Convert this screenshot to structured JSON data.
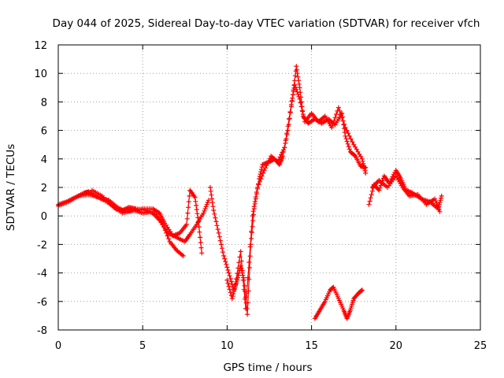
{
  "chart_data": {
    "type": "scatter",
    "title": "Day 044 of 2025, Sidereal Day-to-day VTEC variation (SDTVAR) for receiver vfch",
    "xlabel": "GPS time / hours",
    "ylabel": "SDTVAR / TECUs",
    "xlim": [
      0,
      25
    ],
    "ylim": [
      -8,
      12
    ],
    "x_ticks": [
      "0",
      "5",
      "10",
      "15",
      "20",
      "25"
    ],
    "y_ticks": [
      "-8",
      "-6",
      "-4",
      "-2",
      "0",
      "2",
      "4",
      "6",
      "8",
      "10",
      "12"
    ],
    "grid": true,
    "marker": "+",
    "color": "#ff0000",
    "series": [
      {
        "name": "main",
        "points": [
          [
            0,
            0.8
          ],
          [
            0.5,
            1.0
          ],
          [
            1.0,
            1.3
          ],
          [
            1.5,
            1.6
          ],
          [
            1.8,
            1.7
          ],
          [
            2.2,
            1.4
          ],
          [
            2.6,
            1.2
          ],
          [
            3.0,
            1.1
          ],
          [
            3.5,
            0.6
          ],
          [
            4.0,
            0.3
          ],
          [
            4.5,
            0.4
          ],
          [
            5.0,
            0.2
          ],
          [
            5.5,
            0.3
          ],
          [
            6.0,
            -0.3
          ],
          [
            6.5,
            -1.2
          ],
          [
            7.0,
            -1.5
          ],
          [
            7.5,
            -1.8
          ],
          [
            7.8,
            -1.3
          ],
          [
            8.2,
            -0.6
          ],
          [
            8.6,
            0.2
          ],
          [
            8.9,
            1.1
          ]
        ]
      },
      {
        "name": "main-b",
        "points": [
          [
            0,
            0.7
          ],
          [
            0.6,
            1.0
          ],
          [
            1.2,
            1.4
          ],
          [
            1.8,
            1.5
          ],
          [
            2.4,
            1.3
          ],
          [
            3.0,
            0.9
          ],
          [
            3.4,
            0.5
          ],
          [
            3.8,
            0.4
          ],
          [
            4.2,
            0.6
          ],
          [
            4.6,
            0.5
          ],
          [
            5.2,
            0.4
          ],
          [
            5.8,
            0.1
          ],
          [
            6.2,
            -0.6
          ],
          [
            6.6,
            -1.8
          ],
          [
            7.0,
            -2.4
          ],
          [
            7.4,
            -2.8
          ]
        ]
      },
      {
        "name": "main-c",
        "points": [
          [
            2.0,
            1.8
          ],
          [
            2.6,
            1.4
          ],
          [
            3.2,
            0.7
          ],
          [
            3.8,
            0.2
          ],
          [
            4.4,
            0.4
          ],
          [
            5.0,
            0.5
          ],
          [
            5.6,
            0.5
          ],
          [
            6.0,
            0.2
          ],
          [
            6.3,
            -0.5
          ],
          [
            6.8,
            -1.4
          ],
          [
            7.2,
            -1.2
          ],
          [
            7.6,
            -0.6
          ],
          [
            7.8,
            1.8
          ],
          [
            8.1,
            1.3
          ],
          [
            8.3,
            -0.4
          ],
          [
            8.5,
            -2.6
          ]
        ]
      },
      {
        "name": "dip",
        "points": [
          [
            9.0,
            2.0
          ],
          [
            9.2,
            0.4
          ],
          [
            9.5,
            -1.2
          ],
          [
            9.8,
            -2.8
          ],
          [
            10.1,
            -4.0
          ],
          [
            10.4,
            -5.2
          ],
          [
            10.6,
            -4.5
          ],
          [
            10.8,
            -3.5
          ],
          [
            11.0,
            -4.5
          ],
          [
            11.2,
            -6.9
          ],
          [
            11.4,
            -2.0
          ],
          [
            11.6,
            0.5
          ],
          [
            11.9,
            2.6
          ],
          [
            12.1,
            3.6
          ],
          [
            12.5,
            3.8
          ],
          [
            12.8,
            4.0
          ],
          [
            13.1,
            3.6
          ],
          [
            13.3,
            4.2
          ],
          [
            13.6,
            6.0
          ],
          [
            13.9,
            8.5
          ],
          [
            14.1,
            10.5
          ],
          [
            14.3,
            9.0
          ],
          [
            14.5,
            7.0
          ],
          [
            14.8,
            6.5
          ],
          [
            15.2,
            6.8
          ],
          [
            15.6,
            6.5
          ],
          [
            16.0,
            6.8
          ],
          [
            16.4,
            6.4
          ],
          [
            16.8,
            7.2
          ],
          [
            17.0,
            5.6
          ],
          [
            17.3,
            4.5
          ],
          [
            17.6,
            4.2
          ],
          [
            17.9,
            3.5
          ],
          [
            18.2,
            3.4
          ]
        ]
      },
      {
        "name": "dip-b",
        "points": [
          [
            10.0,
            -4.5
          ],
          [
            10.3,
            -5.8
          ],
          [
            10.5,
            -4.8
          ],
          [
            10.8,
            -2.5
          ],
          [
            11.1,
            -6.5
          ],
          [
            11.5,
            0.0
          ],
          [
            11.8,
            2.0
          ],
          [
            12.2,
            3.2
          ],
          [
            12.6,
            4.2
          ],
          [
            13.0,
            3.8
          ],
          [
            13.4,
            4.8
          ],
          [
            13.8,
            7.8
          ],
          [
            14.0,
            9.2
          ],
          [
            14.3,
            8.2
          ],
          [
            14.6,
            6.6
          ],
          [
            15.0,
            7.2
          ],
          [
            15.4,
            6.6
          ],
          [
            15.8,
            7.0
          ],
          [
            16.2,
            6.2
          ],
          [
            16.6,
            7.6
          ],
          [
            17.0,
            6.2
          ],
          [
            17.5,
            5.0
          ],
          [
            18.0,
            4.0
          ],
          [
            18.2,
            3.0
          ]
        ]
      },
      {
        "name": "late",
        "points": [
          [
            18.4,
            0.8
          ],
          [
            18.7,
            2.2
          ],
          [
            19.0,
            1.8
          ],
          [
            19.3,
            2.8
          ],
          [
            19.6,
            2.3
          ],
          [
            20.0,
            3.2
          ],
          [
            20.3,
            2.6
          ],
          [
            20.6,
            1.8
          ],
          [
            21.0,
            1.6
          ],
          [
            21.5,
            1.2
          ],
          [
            22.0,
            1.0
          ],
          [
            22.5,
            0.5
          ],
          [
            22.7,
            1.4
          ]
        ]
      },
      {
        "name": "late-b",
        "points": [
          [
            18.6,
            2.0
          ],
          [
            19.0,
            2.5
          ],
          [
            19.5,
            2.0
          ],
          [
            20.0,
            2.8
          ],
          [
            20.4,
            2.0
          ],
          [
            20.8,
            1.4
          ],
          [
            21.3,
            1.5
          ],
          [
            21.8,
            0.8
          ],
          [
            22.3,
            1.2
          ],
          [
            22.6,
            0.3
          ]
        ]
      },
      {
        "name": "low",
        "points": [
          [
            15.2,
            -7.2
          ],
          [
            15.5,
            -6.6
          ],
          [
            15.8,
            -6.0
          ],
          [
            16.1,
            -5.2
          ],
          [
            16.3,
            -5.0
          ],
          [
            16.6,
            -5.8
          ],
          [
            16.9,
            -6.6
          ],
          [
            17.1,
            -7.2
          ],
          [
            17.3,
            -6.6
          ],
          [
            17.5,
            -5.8
          ],
          [
            17.8,
            -5.4
          ],
          [
            18.0,
            -5.2
          ]
        ]
      }
    ]
  }
}
